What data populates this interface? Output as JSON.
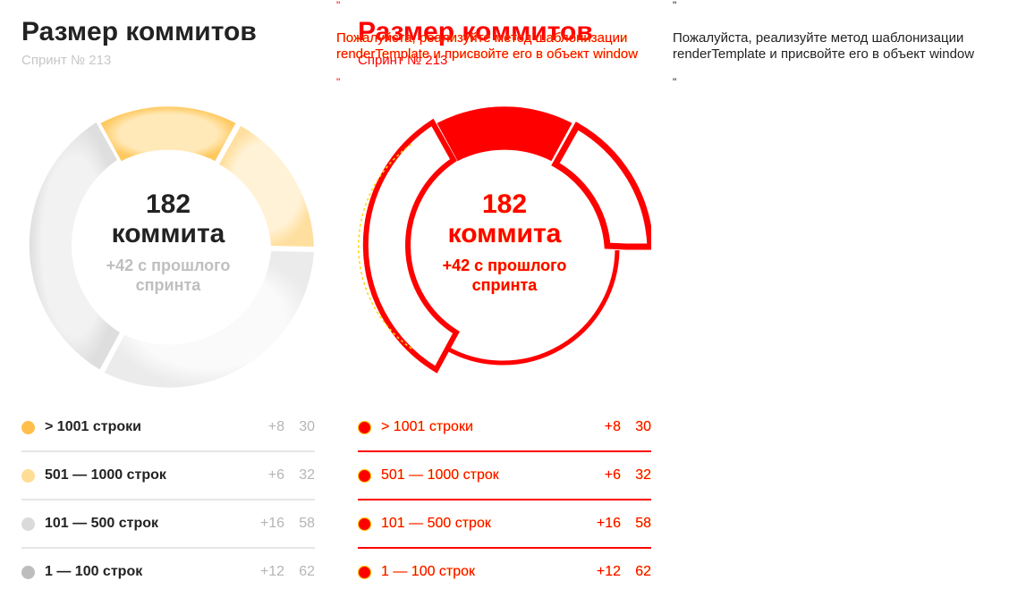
{
  "title": "Размер коммитов",
  "subtitle": "Спринт № 213",
  "center": {
    "value": "182",
    "unit": "коммита",
    "delta_line1": "+42 с прошлого",
    "delta_line2": "спринта"
  },
  "legend": [
    {
      "label": "> 1001 строки",
      "delta": "+8",
      "count": "30",
      "color": "#ffbf4a"
    },
    {
      "label": "501 — 1000 строк",
      "delta": "+6",
      "count": "32",
      "color": "#ffdd94"
    },
    {
      "label": "101 — 500 строк",
      "delta": "+16",
      "count": "58",
      "color": "#dadada"
    },
    {
      "label": "1 — 100 строк",
      "delta": "+12",
      "count": "62",
      "color": "#bdbdbd"
    }
  ],
  "colors": {
    "broken_red": "#ff0000",
    "broken_yellow": "#ffd700"
  },
  "error_message": {
    "line1": "Пожалуйста, реализуйте метод шаблонизации",
    "line2": "renderTemplate и присвойте его в объект window",
    "quote_char": "\""
  }
}
